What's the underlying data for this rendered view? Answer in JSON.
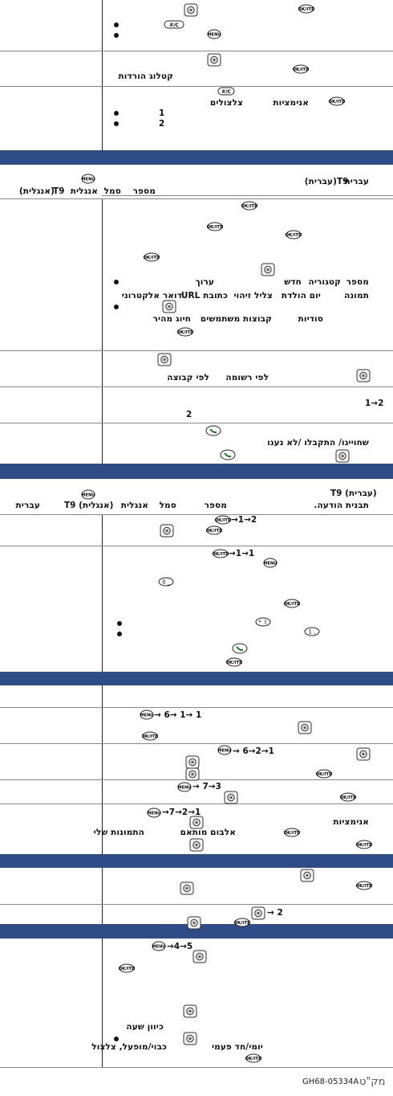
{
  "content": {
    "s1_catalog": "קטלוג הורדות",
    "s1_anim_label": "אנימציות",
    "s1_ring_label": "צלצולים",
    "s1_num1": "1",
    "s1_num2": "2",
    "s2_t9": "T9",
    "s2_hebrew": "עברית",
    "s2_hebrew_paren": "(עברית)",
    "s2_english_paren": "(אנגלית)",
    "s2_symbol": "סמל",
    "s2_english": "אנגלית",
    "s2_number": "מספר",
    "s2_field_number": "מספר",
    "s2_field_category": "קטגוריה",
    "s2_field_new": "חדש",
    "s2_field_edit": "ערוך",
    "s2_photo": "תמונה",
    "s2_birthday": "יום הולדת",
    "s2_caller_id_ring": "צליל זיהוי",
    "s2_url": "כתובת URL",
    "s2_email": "דואר אלקטרוני",
    "s2_secret": "סודיות",
    "s2_user_groups": "קבוצות משתמשים",
    "s2_speed_dial": "חיוג מהיר",
    "s2_by_list": "לפי רשומה",
    "s2_by_group": "לפי קבוצה",
    "s2_seq_1_2": "1→2",
    "s2_num2": "2",
    "s2_dialed": "שחוייגו/ התקבלו /לא נענו",
    "s3_t9_hebrew": "T9 (עברית)",
    "s3_template": "תבנית הודעה.",
    "s3_number": "מספר",
    "s3_symbol": "סמל",
    "s3_english": "אנגלית",
    "s3_t9_english": "T9 (אנגלית)",
    "s3_hebrew": "עברית",
    "s3_seq_1_2": "→1→2",
    "s3_seq_1_1": "→1→1",
    "s4_seq_611": "→ 6→ 1→ 1",
    "s4_seq_621": "→ 6→2→1",
    "s4_seq_73": "→ 7→3",
    "s4_seq_721": "→7→2→1",
    "s4_animations": "אנימציות",
    "s4_album_matched": "אלבום מותאם",
    "s4_my_photos": "התמונות שלי",
    "s5_arrow2": "→ 2",
    "s6_seq_45": "→4→5",
    "s6_time_setting": "כיוון שעה",
    "s6_daily_once": "יומי/חד פעמי",
    "s6_off_snooze": "כבוי/מופעל, צלצול",
    "footer_code": "GH68-05334A",
    "footer_label": "מק\"ט"
  },
  "icons": {
    "nav_key": "navigation-key-icon",
    "ok_key": "ok-key-icon",
    "menu_key": "menu-key-icon",
    "clear_key": "clear-key-icon",
    "call_key": "call-key-icon",
    "num_key": "number-key-icon"
  },
  "colors": {
    "band": "#2f4c86",
    "text": "#111111",
    "rule": "#888888"
  }
}
